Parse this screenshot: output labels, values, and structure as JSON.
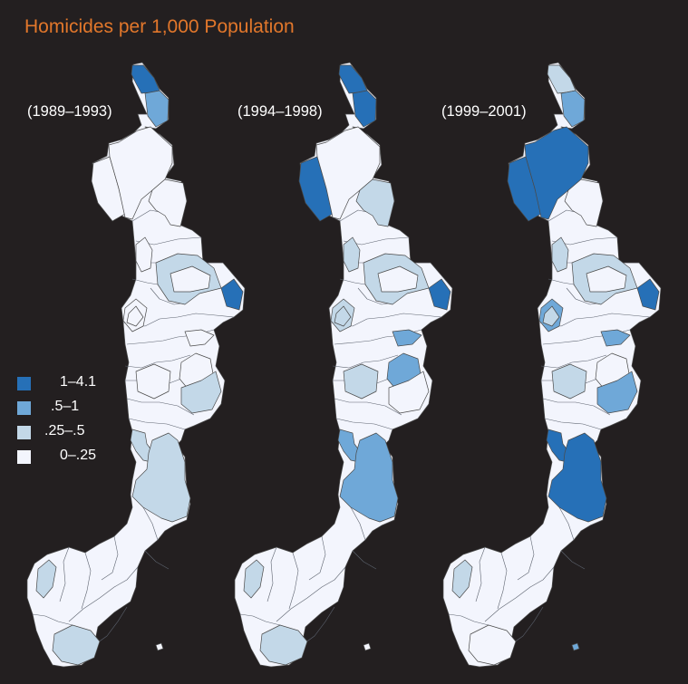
{
  "title": "Homicides per 1,000 Population",
  "colors": {
    "background": "#231f20",
    "title": "#e2772b",
    "class_0": "#f3f5fd",
    "class_1": "#c3d8e8",
    "class_2": "#6fa8d8",
    "class_3": "#2670b7"
  },
  "legend": [
    {
      "label": "1–4.1",
      "class": "class_3"
    },
    {
      "label": ".5–1",
      "class": "class_2"
    },
    {
      "label": ".25–.5",
      "class": "class_1"
    },
    {
      "label": "0–.25",
      "class": "class_0"
    }
  ],
  "periods": [
    {
      "label": "(1989–1993)",
      "regions": {
        "north_tip": "class_3",
        "north_small": "class_2",
        "northwest_coast": "class_0",
        "northeast_inland": "class_0",
        "north_plain": "class_0",
        "center_ring": "class_1",
        "center_inner": "class_0",
        "east_coast_upper": "class_3",
        "mid_west_coast": "class_0",
        "mid_river": "class_0",
        "mid_inner_east": "class_0",
        "mid_east_lower": "class_1",
        "mid_south_coast": "class_0",
        "gulf_islands": "class_1",
        "south_east_large": "class_1",
        "south_west_islands": "class_1",
        "southern_peninsula": "class_1",
        "east_strip": "class_0",
        "lower_northwest": "class_0",
        "south_islet": "class_0"
      }
    },
    {
      "label": "(1994–1998)",
      "regions": {
        "north_tip": "class_3",
        "north_small": "class_3",
        "northwest_coast": "class_3",
        "northeast_inland": "class_1",
        "north_plain": "class_0",
        "center_ring": "class_1",
        "center_inner": "class_0",
        "east_coast_upper": "class_3",
        "mid_west_coast": "class_1",
        "mid_river": "class_2",
        "mid_inner_east": "class_2",
        "mid_east_lower": "class_0",
        "mid_south_coast": "class_1",
        "gulf_islands": "class_2",
        "south_east_large": "class_2",
        "south_west_islands": "class_1",
        "southern_peninsula": "class_1",
        "east_strip": "class_1",
        "lower_northwest": "class_1",
        "south_islet": "class_0"
      }
    },
    {
      "label": "(1999–2001)",
      "regions": {
        "north_tip": "class_1",
        "north_small": "class_2",
        "northwest_coast": "class_3",
        "northeast_inland": "class_0",
        "north_plain": "class_3",
        "center_ring": "class_1",
        "center_inner": "class_0",
        "east_coast_upper": "class_3",
        "mid_west_coast": "class_2",
        "mid_river": "class_2",
        "mid_inner_east": "class_0",
        "mid_east_lower": "class_2",
        "mid_south_coast": "class_1",
        "gulf_islands": "class_3",
        "south_east_large": "class_3",
        "south_west_islands": "class_1",
        "southern_peninsula": "class_0",
        "east_strip": "class_1",
        "lower_northwest": "class_1",
        "south_islet": "class_2"
      }
    }
  ]
}
